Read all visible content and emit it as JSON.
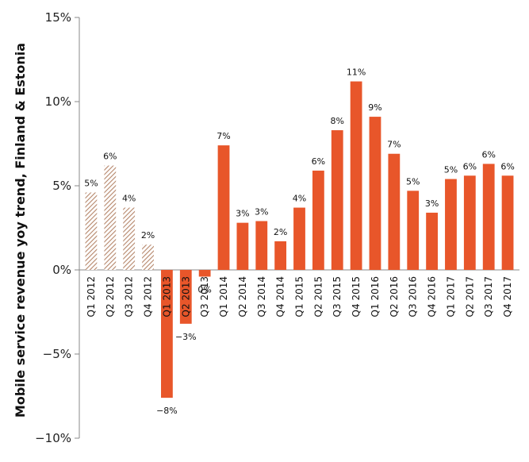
{
  "chart_data": {
    "type": "bar",
    "title": "",
    "xlabel": "",
    "ylabel": "Mobile service revenue yoy trend, Finland & Estonia",
    "ylim": [
      -10,
      15
    ],
    "yticks": [
      15,
      10,
      5,
      0,
      -5,
      -10
    ],
    "ytick_labels": [
      "15%",
      "10%",
      "5%",
      "0%",
      "−5%",
      "−10%"
    ],
    "categories": [
      "Q1 2012",
      "Q2 2012",
      "Q3 2012",
      "Q4 2012",
      "Q1 2013",
      "Q2 2013",
      "Q3 2013",
      "Q1 2014",
      "Q2 2014",
      "Q3 2014",
      "Q4 2014",
      "Q1 2015",
      "Q2 2015",
      "Q3 2015",
      "Q4 2015",
      "Q1 2016",
      "Q2 2016",
      "Q3 2016",
      "Q4 2016",
      "Q1 2017",
      "Q2 2017",
      "Q3 2017",
      "Q4 2017"
    ],
    "values": [
      4.6,
      6.2,
      3.7,
      1.5,
      -7.6,
      -3.2,
      -0.4,
      7.4,
      2.8,
      2.9,
      1.7,
      3.7,
      5.9,
      8.3,
      11.2,
      9.1,
      6.9,
      4.7,
      3.4,
      5.4,
      5.6,
      6.3,
      5.6
    ],
    "data_labels": [
      "5%",
      "6%",
      "4%",
      "2%",
      "−8%",
      "−3%",
      "0%",
      "7%",
      "3%",
      "3%",
      "2%",
      "4%",
      "6%",
      "8%",
      "11%",
      "9%",
      "7%",
      "5%",
      "3%",
      "5%",
      "6%",
      "6%",
      "6%"
    ],
    "hatched_count": 4,
    "colors": {
      "bar": "#e8562a",
      "hatch": "#b5866a",
      "axis": "#888888"
    }
  }
}
